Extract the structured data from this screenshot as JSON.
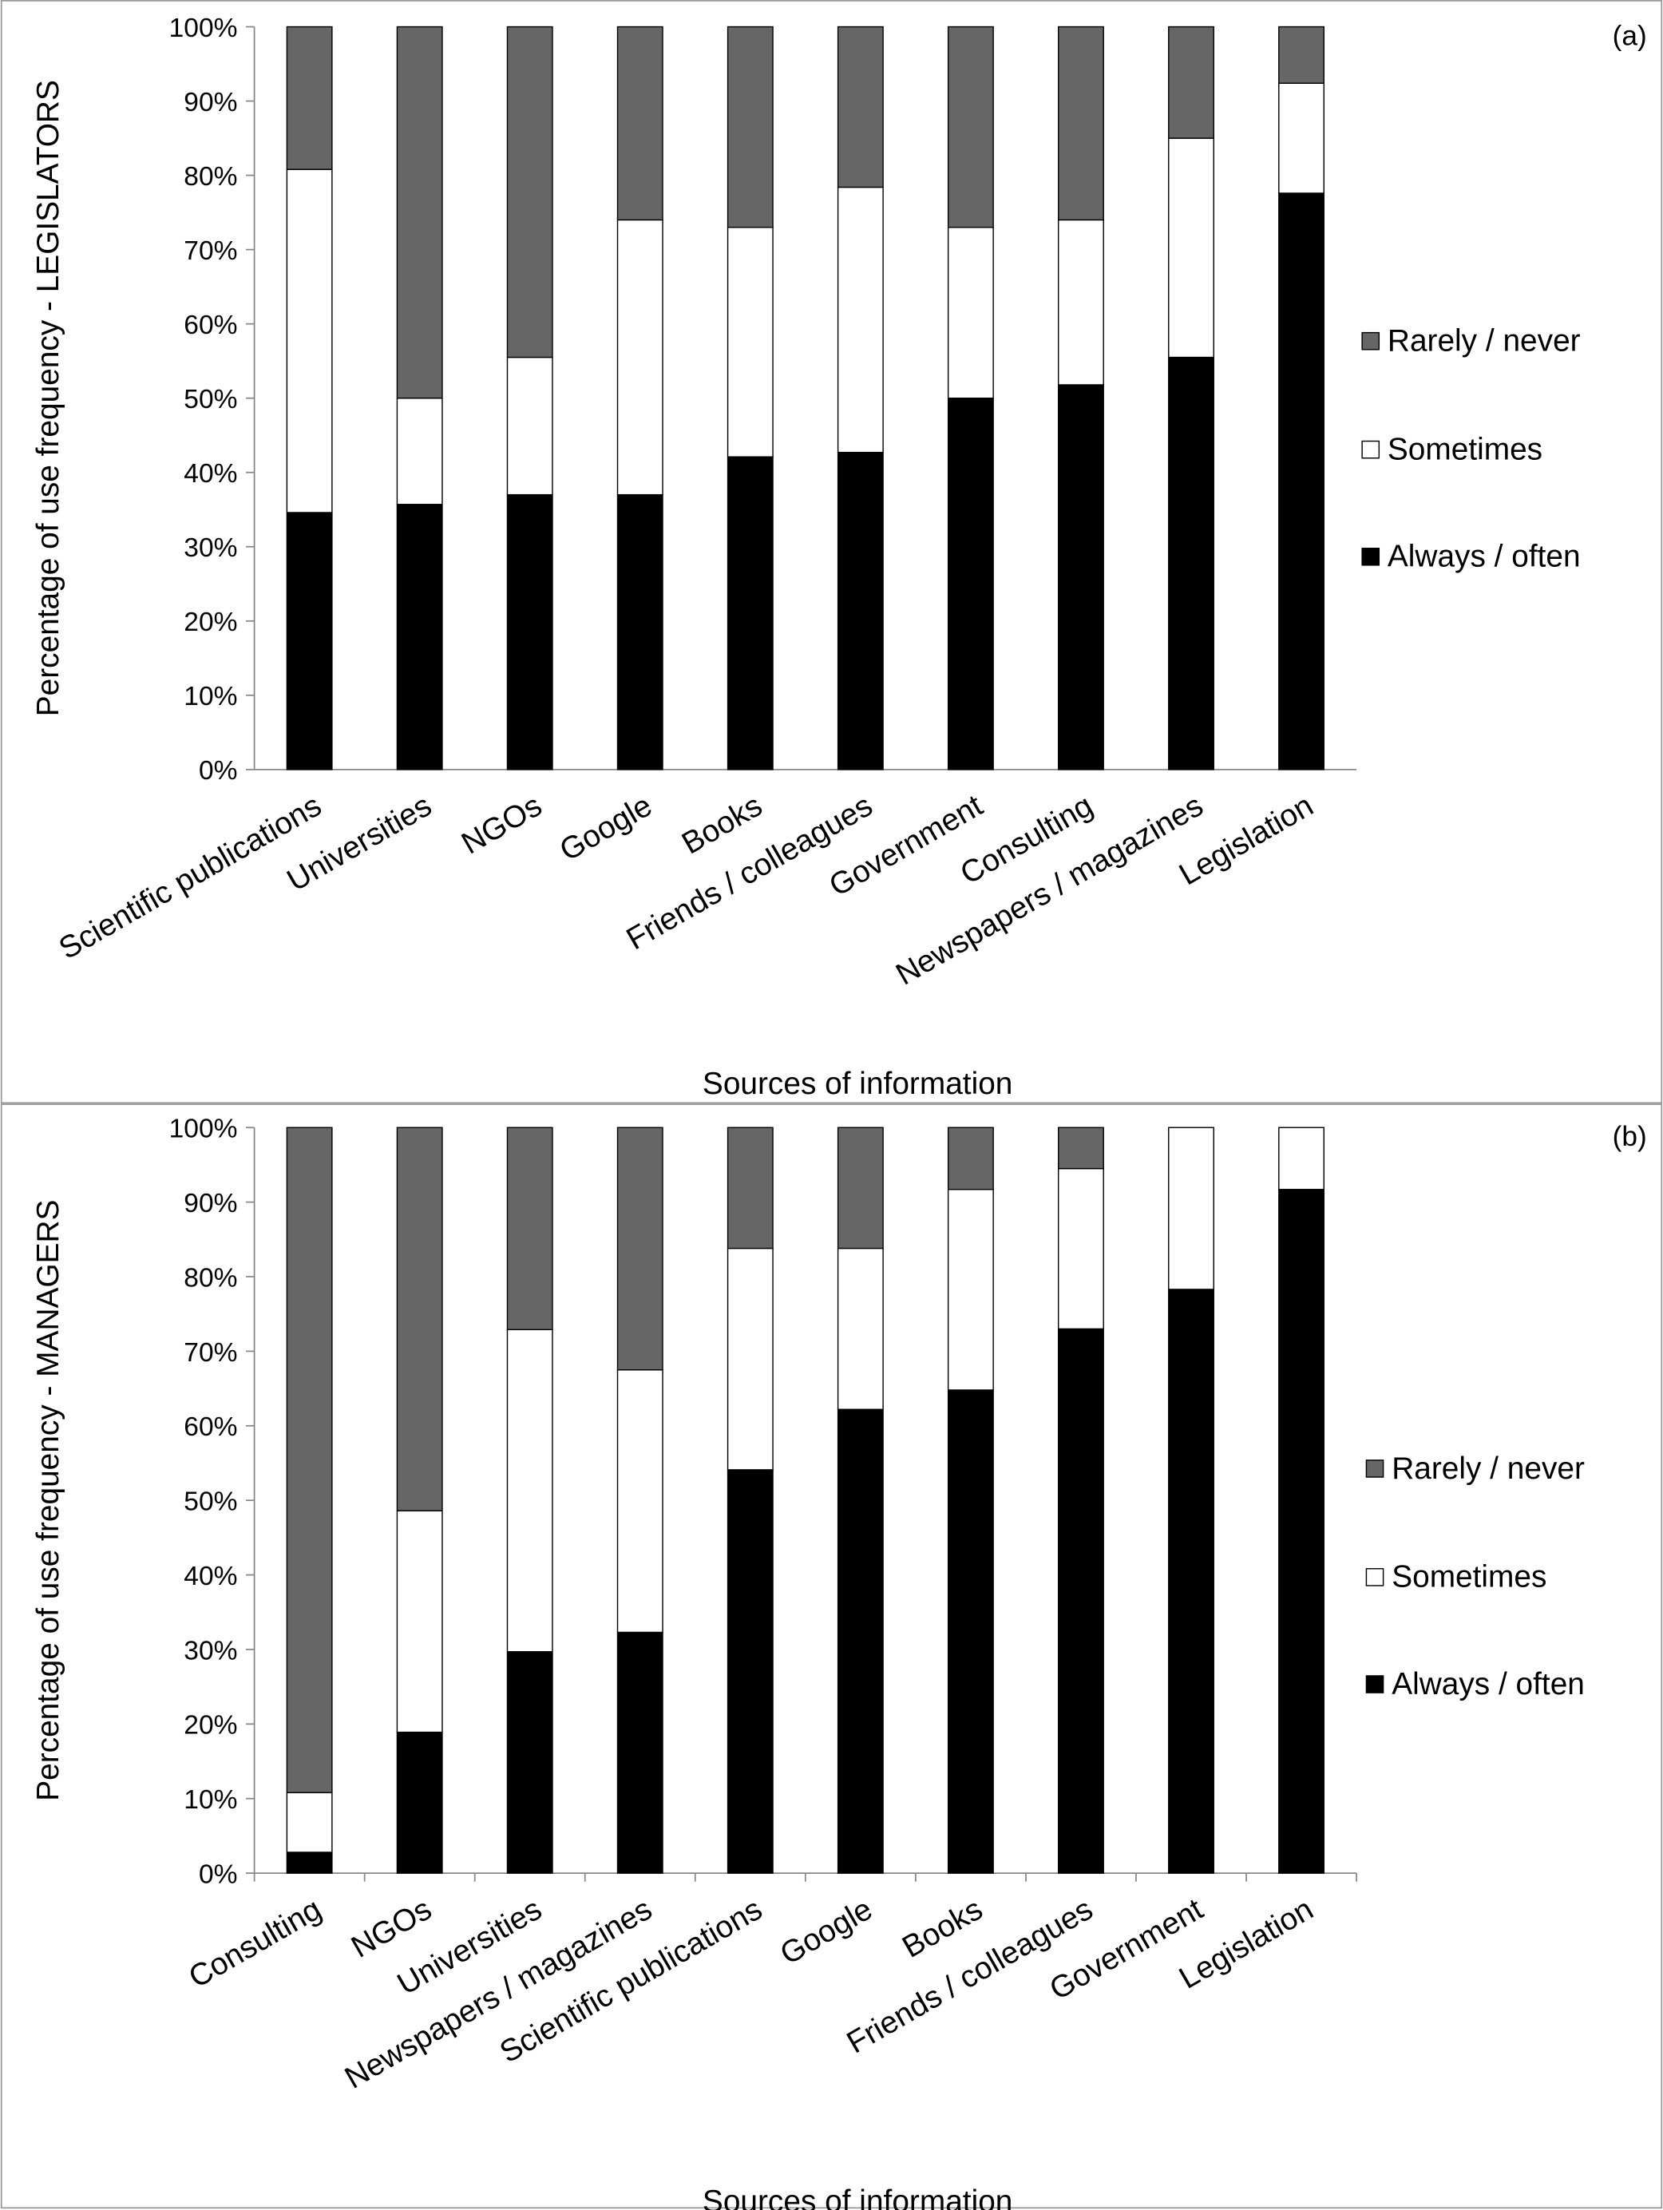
{
  "chart_data": [
    {
      "type": "stacked_bar",
      "annotation": "(a)",
      "y_label": "Percentage of use frequency - LEGISLATORS",
      "x_label": "Sources of information",
      "categories": [
        "Scientific publications",
        "Universities",
        "NGOs",
        "Google",
        "Books",
        "Friends / colleagues",
        "Government",
        "Consulting",
        "Newspapers / magazines",
        "Legislation"
      ],
      "series": [
        {
          "name": "Always / often",
          "color": "#000000",
          "values": [
            34.6,
            35.7,
            37,
            37,
            42.1,
            42.7,
            50,
            51.8,
            55.5,
            77.6
          ]
        },
        {
          "name": "Sometimes",
          "color": "#ffffff",
          "values": [
            46.2,
            14.3,
            18.5,
            37,
            30.9,
            35.7,
            23,
            22.2,
            29.5,
            14.8
          ]
        },
        {
          "name": "Rarely / never",
          "color": "#666666",
          "values": [
            19.2,
            50,
            44.5,
            26,
            27,
            21.6,
            27,
            26,
            15,
            7.6
          ]
        }
      ],
      "ylim": [
        0,
        100
      ],
      "yticks": [
        {
          "value": 0,
          "label": "0%"
        },
        {
          "value": 10,
          "label": "10%"
        },
        {
          "value": 20,
          "label": "20%"
        },
        {
          "value": 30,
          "label": "30%"
        },
        {
          "value": 40,
          "label": "40%"
        },
        {
          "value": 50,
          "label": "50%"
        },
        {
          "value": 60,
          "label": "60%"
        },
        {
          "value": 70,
          "label": "70%"
        },
        {
          "value": 80,
          "label": "80%"
        },
        {
          "value": 90,
          "label": "90%"
        },
        {
          "value": 100,
          "label": "100%"
        }
      ],
      "grid": false,
      "legend": "right"
    },
    {
      "type": "stacked_bar",
      "annotation": "(b)",
      "y_label": "Percentage of use frequency - MANAGERS",
      "x_label": "Sources of information",
      "categories": [
        "Consulting",
        "NGOs",
        "Universities",
        "Newspapers / magazines",
        "Scientific publications",
        "Google",
        "Books",
        "Friends / colleagues",
        "Government",
        "Legislation"
      ],
      "series": [
        {
          "name": "Always / often",
          "color": "#000000",
          "values": [
            2.8,
            18.9,
            29.7,
            32.3,
            54.1,
            62.2,
            64.8,
            73,
            78.3,
            91.7
          ]
        },
        {
          "name": "Sometimes",
          "color": "#ffffff",
          "values": [
            8,
            29.7,
            43.2,
            35.2,
            29.7,
            21.6,
            26.9,
            21.5,
            21.7,
            8.3
          ]
        },
        {
          "name": "Rarely / never",
          "color": "#666666",
          "values": [
            89.2,
            51.4,
            27.1,
            32.5,
            16.2,
            16.2,
            8.3,
            5.5,
            0,
            0
          ]
        }
      ],
      "ylim": [
        0,
        100
      ],
      "yticks": [
        {
          "value": 0,
          "label": "0%"
        },
        {
          "value": 10,
          "label": "10%"
        },
        {
          "value": 20,
          "label": "20%"
        },
        {
          "value": 30,
          "label": "30%"
        },
        {
          "value": 40,
          "label": "40%"
        },
        {
          "value": 50,
          "label": "50%"
        },
        {
          "value": 60,
          "label": "60%"
        },
        {
          "value": 70,
          "label": "70%"
        },
        {
          "value": 80,
          "label": "80%"
        },
        {
          "value": 90,
          "label": "90%"
        },
        {
          "value": 100,
          "label": "100%"
        }
      ],
      "grid": false,
      "legend": "right"
    }
  ]
}
